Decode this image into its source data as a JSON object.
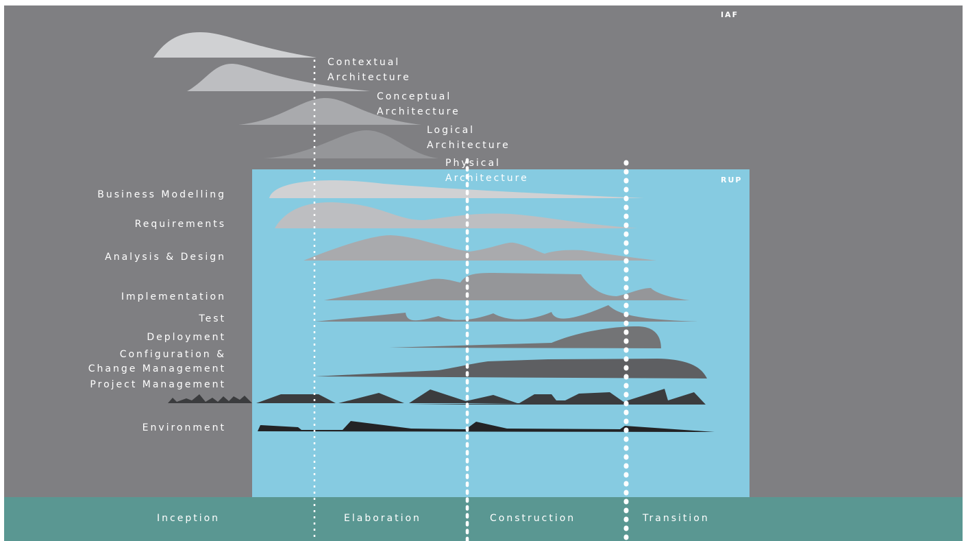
{
  "corner_tags": {
    "iaf": "IAF",
    "rup": "RUP"
  },
  "architecture_levels": [
    {
      "line1": "Contextual",
      "line2": "Architecture"
    },
    {
      "line1": "Conceptual",
      "line2": "Architecture"
    },
    {
      "line1": "Logical",
      "line2": "Architecture"
    },
    {
      "line1": "Physical",
      "line2": "Architecture"
    }
  ],
  "disciplines": [
    "Business Modelling",
    "Requirements",
    "Analysis & Design",
    "Implementation",
    "Test",
    "Deployment",
    "Configuration &",
    "Change Management",
    "Project Management",
    "Environment"
  ],
  "phases": [
    "Inception",
    "Elaboration",
    "Construction",
    "Transition"
  ],
  "colors": {
    "outer_background": "#7f7f82",
    "rup_panel": "#86cbe1",
    "phase_band": "#5a9792",
    "text": "#ffffff"
  }
}
